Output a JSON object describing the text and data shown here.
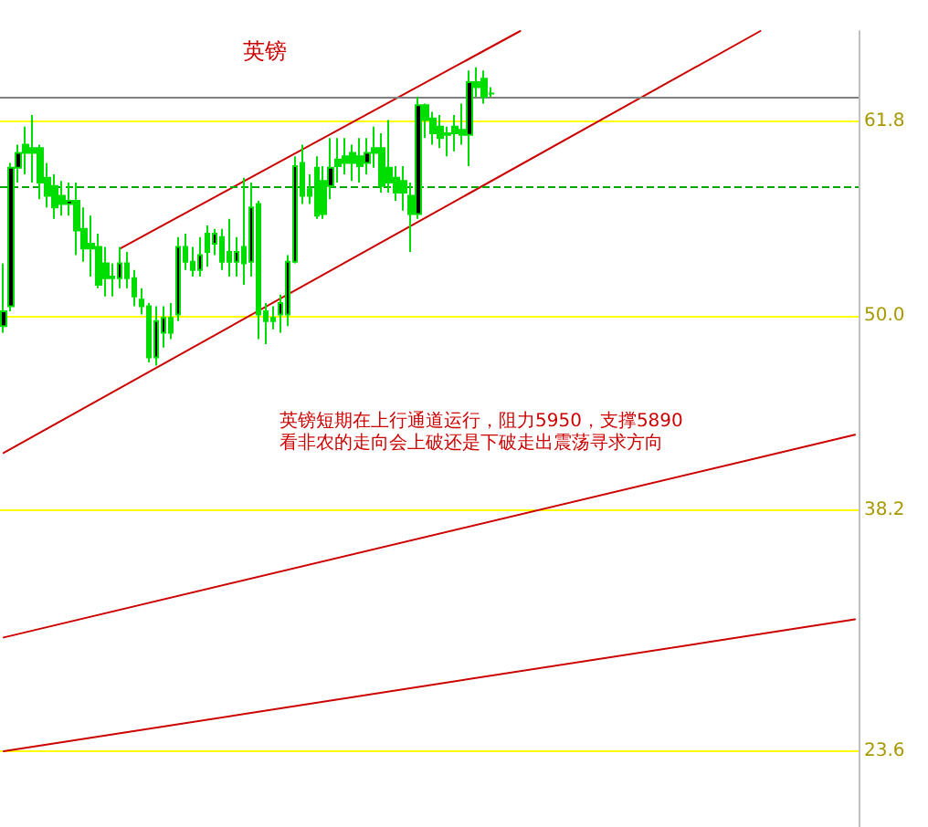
{
  "chart_data": {
    "type": "candlestick",
    "title": "英镑",
    "tick_labels": "y",
    "grid": "y",
    "ylim": [
      19.0,
      67.3
    ],
    "yticks": [
      23.6,
      38.2,
      {
        "value": 50,
        "label": "50.0"
      },
      61.8
    ],
    "annotations": [
      "英镑短期在上行通道运行，阻力5950，支撑5890\n看非农的走向会上破还是下破走出震荡寻求方向"
    ],
    "categories": [
      null,
      null,
      null,
      null,
      null,
      null,
      null,
      null,
      null,
      null,
      null,
      null,
      null,
      null,
      null,
      null,
      null,
      null,
      null,
      null,
      null,
      null,
      null,
      null,
      null,
      null,
      null,
      null,
      null,
      null,
      null,
      null,
      null,
      null,
      null,
      null,
      null,
      null,
      null,
      null,
      null,
      null,
      null,
      null,
      null,
      null,
      null,
      null,
      null,
      null,
      null,
      null,
      null,
      null,
      null,
      null,
      null,
      null,
      null,
      null,
      null,
      null,
      null,
      null,
      null,
      null,
      null,
      null,
      null,
      null,
      null,
      null,
      null,
      null,
      null,
      null,
      null,
      null,
      null,
      null,
      null,
      null,
      null,
      null,
      null,
      null,
      null,
      null,
      null,
      null,
      null,
      null,
      null,
      null,
      null,
      null,
      null,
      null,
      null,
      null,
      null,
      null,
      null,
      null,
      null,
      null,
      null,
      null,
      null,
      null,
      null,
      null,
      null,
      null,
      null,
      null,
      null,
      null
    ],
    "series": [
      {
        "color": "#00dd00",
        "ohlc": [
          [
            49.4,
            53.2,
            49.0,
            50.3
          ],
          [
            50.6,
            59.3,
            50.3,
            59.0
          ],
          [
            59.0,
            60.4,
            58.1,
            59.9
          ],
          [
            60.4,
            61.5,
            58.6,
            59.9
          ],
          [
            60.2,
            62.2,
            58.1,
            59.9
          ],
          [
            60.2,
            60.4,
            57.1,
            58.1
          ],
          [
            58.4,
            59.3,
            56.6,
            57.3
          ],
          [
            57.9,
            58.6,
            55.9,
            56.6
          ],
          [
            57.3,
            58.2,
            56.1,
            56.8
          ],
          [
            56.8,
            58.1,
            56.1,
            57.0
          ],
          [
            57.0,
            58.1,
            53.7,
            55.2
          ],
          [
            55.3,
            56.6,
            53.3,
            54.1
          ],
          [
            54.4,
            56.1,
            52.4,
            54.1
          ],
          [
            54.2,
            55.0,
            51.7,
            51.9
          ],
          [
            53.2,
            54.2,
            51.2,
            52.3
          ],
          [
            52.4,
            53.2,
            51.2,
            52.3
          ],
          [
            52.3,
            54.2,
            51.7,
            53.2
          ],
          [
            53.2,
            53.9,
            51.7,
            52.3
          ],
          [
            52.3,
            52.8,
            50.6,
            51.2
          ],
          [
            51.0,
            51.7,
            50.1,
            50.6
          ],
          [
            50.6,
            50.8,
            47.2,
            47.5
          ],
          [
            47.5,
            50.6,
            47.0,
            49.7
          ],
          [
            49.0,
            50.6,
            48.1,
            49.9
          ],
          [
            49.9,
            50.8,
            48.6,
            49.0
          ],
          [
            50.1,
            54.8,
            49.7,
            54.2
          ],
          [
            54.2,
            55.0,
            52.8,
            53.3
          ],
          [
            53.3,
            54.2,
            52.4,
            52.8
          ],
          [
            52.8,
            54.8,
            52.4,
            53.7
          ],
          [
            55.0,
            55.5,
            53.0,
            53.9
          ],
          [
            54.4,
            55.3,
            53.7,
            55.0
          ],
          [
            54.8,
            55.3,
            52.8,
            53.3
          ],
          [
            53.9,
            55.9,
            52.4,
            53.3
          ],
          [
            53.3,
            54.8,
            52.4,
            53.9
          ],
          [
            54.2,
            58.4,
            51.9,
            53.2
          ],
          [
            53.3,
            58.1,
            52.4,
            56.6
          ],
          [
            56.8,
            57.0,
            48.6,
            50.1
          ],
          [
            50.3,
            50.8,
            48.3,
            49.7
          ],
          [
            49.9,
            50.6,
            49.2,
            49.7
          ],
          [
            50.1,
            51.3,
            49.0,
            50.8
          ],
          [
            50.1,
            53.7,
            49.4,
            53.3
          ],
          [
            53.3,
            59.7,
            53.2,
            59.1
          ],
          [
            59.3,
            60.4,
            56.8,
            57.3
          ],
          [
            57.7,
            58.6,
            56.8,
            57.3
          ],
          [
            59.0,
            59.7,
            55.9,
            56.1
          ],
          [
            58.2,
            59.1,
            55.9,
            56.2
          ],
          [
            57.9,
            60.8,
            57.1,
            59.0
          ],
          [
            59.5,
            60.8,
            58.1,
            59.1
          ],
          [
            59.7,
            60.8,
            58.6,
            59.3
          ],
          [
            59.9,
            60.4,
            58.2,
            59.3
          ],
          [
            59.7,
            60.8,
            58.1,
            59.1
          ],
          [
            59.3,
            60.8,
            58.6,
            59.9
          ],
          [
            60.2,
            61.5,
            59.0,
            59.9
          ],
          [
            60.2,
            61.1,
            57.5,
            57.9
          ],
          [
            59.0,
            61.9,
            57.5,
            58.1
          ],
          [
            58.4,
            59.1,
            57.0,
            57.5
          ],
          [
            58.2,
            59.1,
            56.4,
            57.5
          ],
          [
            57.3,
            58.1,
            53.9,
            56.2
          ],
          [
            56.2,
            63.3,
            55.9,
            62.8
          ],
          [
            62.8,
            62.9,
            60.8,
            61.9
          ],
          [
            62.0,
            62.4,
            60.4,
            61.1
          ],
          [
            61.5,
            62.2,
            60.2,
            60.8
          ],
          [
            61.1,
            61.5,
            59.7,
            61.0
          ],
          [
            61.5,
            62.2,
            60.0,
            61.1
          ],
          [
            61.3,
            62.9,
            60.4,
            61.0
          ],
          [
            61.0,
            64.9,
            59.1,
            64.2
          ],
          [
            64.2,
            65.1,
            63.3,
            63.9
          ],
          [
            64.4,
            64.9,
            62.9,
            63.3
          ],
          [
            63.5,
            63.9,
            63.3,
            63.5
          ],
          null,
          null,
          null,
          null,
          null,
          null,
          null,
          null,
          null,
          null,
          null,
          null,
          null,
          null,
          null,
          null,
          null,
          null,
          null,
          null,
          null,
          null,
          null,
          null,
          null,
          null,
          null,
          null,
          null,
          null,
          null,
          null,
          null,
          null,
          null,
          null,
          null,
          null,
          null,
          null,
          null,
          null,
          null,
          null,
          null,
          null,
          null,
          null,
          null,
          null
        ]
      },
      {
        "type": "line",
        "color": "#cc0000",
        "values": [
          null,
          null,
          null,
          null,
          null,
          null,
          null,
          null,
          null,
          null,
          null,
          null,
          null,
          null,
          null,
          null,
          54.1,
          null,
          null,
          null,
          null,
          null,
          null,
          null,
          null,
          null,
          null,
          null,
          null,
          null,
          null,
          null,
          null,
          null,
          null,
          null,
          null,
          null,
          null,
          null,
          null,
          null,
          null,
          null,
          null,
          null,
          null,
          null,
          null,
          null,
          null,
          null,
          null,
          null,
          null,
          null,
          null,
          null,
          null,
          null,
          null,
          null,
          null,
          null,
          null,
          null,
          null,
          null,
          null,
          null,
          null,
          67.3,
          null,
          null,
          null,
          null,
          null,
          null,
          null,
          null,
          null,
          null,
          null,
          null,
          null,
          null,
          null,
          null,
          null,
          null,
          null,
          null,
          null,
          null,
          null,
          null,
          null,
          null,
          null,
          null,
          null,
          null,
          null,
          null,
          null,
          null,
          null,
          null,
          null,
          null,
          null,
          null,
          null,
          null,
          null,
          null,
          null,
          null
        ]
      },
      {
        "type": "line",
        "color": "#cc0000",
        "values": [
          41.7,
          null,
          null,
          null,
          null,
          null,
          null,
          null,
          null,
          null,
          null,
          null,
          null,
          null,
          null,
          null,
          null,
          null,
          null,
          null,
          null,
          null,
          null,
          null,
          null,
          null,
          null,
          null,
          null,
          null,
          null,
          null,
          null,
          null,
          null,
          null,
          null,
          null,
          null,
          null,
          null,
          null,
          null,
          null,
          null,
          null,
          null,
          null,
          null,
          null,
          null,
          null,
          null,
          null,
          null,
          null,
          null,
          null,
          null,
          null,
          null,
          null,
          null,
          null,
          null,
          null,
          null,
          null,
          null,
          null,
          null,
          null,
          null,
          null,
          null,
          null,
          null,
          null,
          null,
          null,
          null,
          null,
          null,
          null,
          null,
          null,
          null,
          null,
          null,
          null,
          null,
          null,
          null,
          null,
          null,
          null,
          null,
          null,
          null,
          null,
          null,
          null,
          null,
          null,
          67.3,
          null,
          null,
          null,
          null,
          null,
          null,
          null,
          null,
          null,
          null,
          null,
          null,
          null
        ]
      },
      {
        "type": "line",
        "color": "#cc0000",
        "values": [
          30.5,
          null,
          null,
          null,
          null,
          null,
          null,
          null,
          null,
          null,
          null,
          null,
          null,
          null,
          null,
          null,
          null,
          null,
          null,
          null,
          null,
          null,
          null,
          null,
          null,
          null,
          null,
          null,
          null,
          null,
          null,
          null,
          null,
          null,
          null,
          null,
          null,
          null,
          null,
          null,
          null,
          null,
          null,
          null,
          null,
          null,
          null,
          null,
          null,
          null,
          null,
          null,
          null,
          null,
          null,
          null,
          null,
          null,
          null,
          null,
          null,
          null,
          null,
          null,
          null,
          null,
          null,
          null,
          null,
          null,
          null,
          null,
          null,
          null,
          null,
          null,
          null,
          null,
          null,
          null,
          null,
          null,
          null,
          null,
          null,
          null,
          null,
          null,
          null,
          null,
          null,
          null,
          null,
          null,
          null,
          null,
          null,
          null,
          null,
          null,
          null,
          null,
          null,
          null,
          null,
          null,
          null,
          null,
          null,
          null,
          null,
          null,
          null,
          null,
          null,
          null,
          null,
          42.8
        ]
      },
      {
        "type": "line",
        "color": "#cc0000",
        "values": [
          23.6,
          null,
          null,
          null,
          null,
          null,
          null,
          null,
          null,
          null,
          null,
          null,
          null,
          null,
          null,
          null,
          null,
          null,
          null,
          null,
          null,
          null,
          null,
          null,
          null,
          null,
          null,
          null,
          null,
          null,
          null,
          null,
          null,
          null,
          null,
          null,
          null,
          null,
          null,
          null,
          null,
          null,
          null,
          null,
          null,
          null,
          null,
          null,
          null,
          null,
          null,
          null,
          null,
          null,
          null,
          null,
          null,
          null,
          null,
          null,
          null,
          null,
          null,
          null,
          null,
          null,
          null,
          null,
          null,
          null,
          null,
          null,
          null,
          null,
          null,
          null,
          null,
          null,
          null,
          null,
          null,
          null,
          null,
          null,
          null,
          null,
          null,
          null,
          null,
          null,
          null,
          null,
          null,
          null,
          null,
          null,
          null,
          null,
          null,
          null,
          null,
          null,
          null,
          null,
          null,
          null,
          null,
          null,
          null,
          null,
          null,
          null,
          null,
          null,
          null,
          null,
          null,
          31.6
        ]
      }
    ],
    "ref_lines": [
      {
        "axis": "y",
        "value": 63.3,
        "color": "#808080"
      },
      {
        "axis": "y",
        "value": 57.9,
        "color": "#00aa00",
        "line_style": "dashed"
      }
    ]
  }
}
